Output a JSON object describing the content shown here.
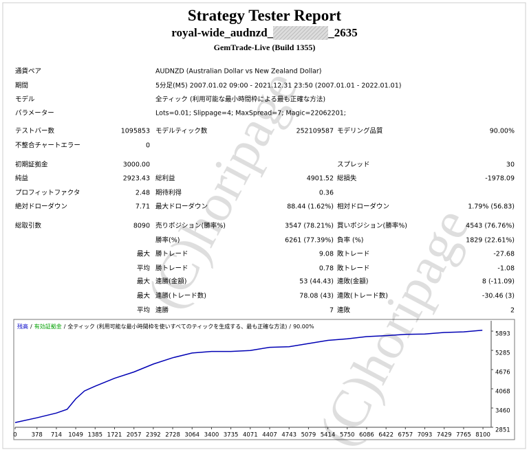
{
  "header": {
    "title": "Strategy Tester Report",
    "name_start": "royal-wide_audnzd_",
    "name_end": "_2635",
    "build": "GemTrade-Live (Build 1355)"
  },
  "info": [
    [
      "通貨ペア",
      "AUDNZD (Australian Dollar vs New Zealand Dollar)"
    ],
    [
      "期間",
      "5分足(M5) 2007.01.02 09:00 - 2021.12.31 23:50 (2007.01.01 - 2022.01.01)"
    ],
    [
      "モデル",
      "全ティック (利用可能な最小時間枠による最も正確な方法)"
    ],
    [
      "パラメーター",
      "Lots=0.01; Slippage=4; MaxSpread=7; Magic=22062201;"
    ]
  ],
  "stats": [
    [
      "テストバー数",
      "1095853",
      "モデルティック数",
      "252109587",
      "モデリング品質",
      "90.00%"
    ],
    [
      "不整合チャートエラー",
      "0",
      null,
      null,
      null,
      null
    ],
    [
      "初期証拠金",
      "3000.00",
      null,
      null,
      "スプレッド",
      "30"
    ],
    [
      "純益",
      "2923.43",
      "総利益",
      "4901.52",
      "総損失",
      "-1978.09"
    ],
    [
      "プロフィットファクタ",
      "2.48",
      "期待利得",
      "0.36",
      null,
      null
    ],
    [
      "絶対ドローダウン",
      "7.71",
      "最大ドローダウン",
      "88.44 (1.62%)",
      "相対ドローダウン",
      "1.79% (56.83)"
    ],
    [
      "総取引数",
      "8090",
      "売りポジション(勝率%)",
      "3547 (78.21%)",
      "買いポジション(勝率%)",
      "4543 (76.76%)"
    ],
    [
      null,
      null,
      "勝率(%)",
      "6261 (77.39%)",
      "負率 (%)",
      "1829 (22.61%)"
    ],
    [
      null,
      "最大",
      "勝トレード",
      "9.08",
      "敗トレード",
      "-27.68"
    ],
    [
      null,
      "平均",
      "勝トレード",
      "0.78",
      "敗トレード",
      "-1.08"
    ],
    [
      null,
      "最大",
      "連勝(金額)",
      "53 (44.43)",
      "連敗(金額)",
      "8 (-11.09)"
    ],
    [
      null,
      "最大",
      "連勝(トレード数)",
      "78.08 (43)",
      "連敗(トレード数)",
      "-30.46 (3)"
    ],
    [
      null,
      "平均",
      "連勝",
      "7",
      "連敗",
      "2"
    ]
  ],
  "watermark": "(C)horipage",
  "chart": {
    "type": "line",
    "legend": {
      "balance": "残高",
      "equity": "有効証拠金",
      "separator": "/",
      "model": "全ティック (利用可能な最小時間枠を使いすべてのティックを生成する、最も正確な方法)",
      "quality": "90.00%"
    },
    "series": [
      {
        "color": "#0000b4",
        "x": [
          0,
          378,
          714,
          900,
          1049,
          1200,
          1385,
          1721,
          2057,
          2392,
          2728,
          3064,
          3400,
          3735,
          4071,
          4407,
          4743,
          5079,
          5414,
          5750,
          6086,
          6422,
          6757,
          7093,
          7429,
          7765,
          8090
        ],
        "y": [
          3000,
          3150,
          3300,
          3420,
          3750,
          4000,
          4150,
          4400,
          4600,
          4850,
          5050,
          5200,
          5250,
          5250,
          5280,
          5380,
          5400,
          5500,
          5600,
          5650,
          5720,
          5750,
          5790,
          5800,
          5850,
          5870,
          5923
        ]
      }
    ],
    "xlim": [
      0,
      8242
    ],
    "ylim": [
      2851,
      6220
    ],
    "xticks": [
      0,
      378,
      714,
      1049,
      1385,
      1721,
      2057,
      2392,
      2728,
      3064,
      3400,
      3735,
      4071,
      4407,
      4743,
      5079,
      5414,
      5750,
      6086,
      6422,
      6757,
      7093,
      7429,
      7765,
      8100
    ],
    "yticks": [
      2851,
      3460,
      4068,
      4676,
      5285,
      5893
    ]
  }
}
